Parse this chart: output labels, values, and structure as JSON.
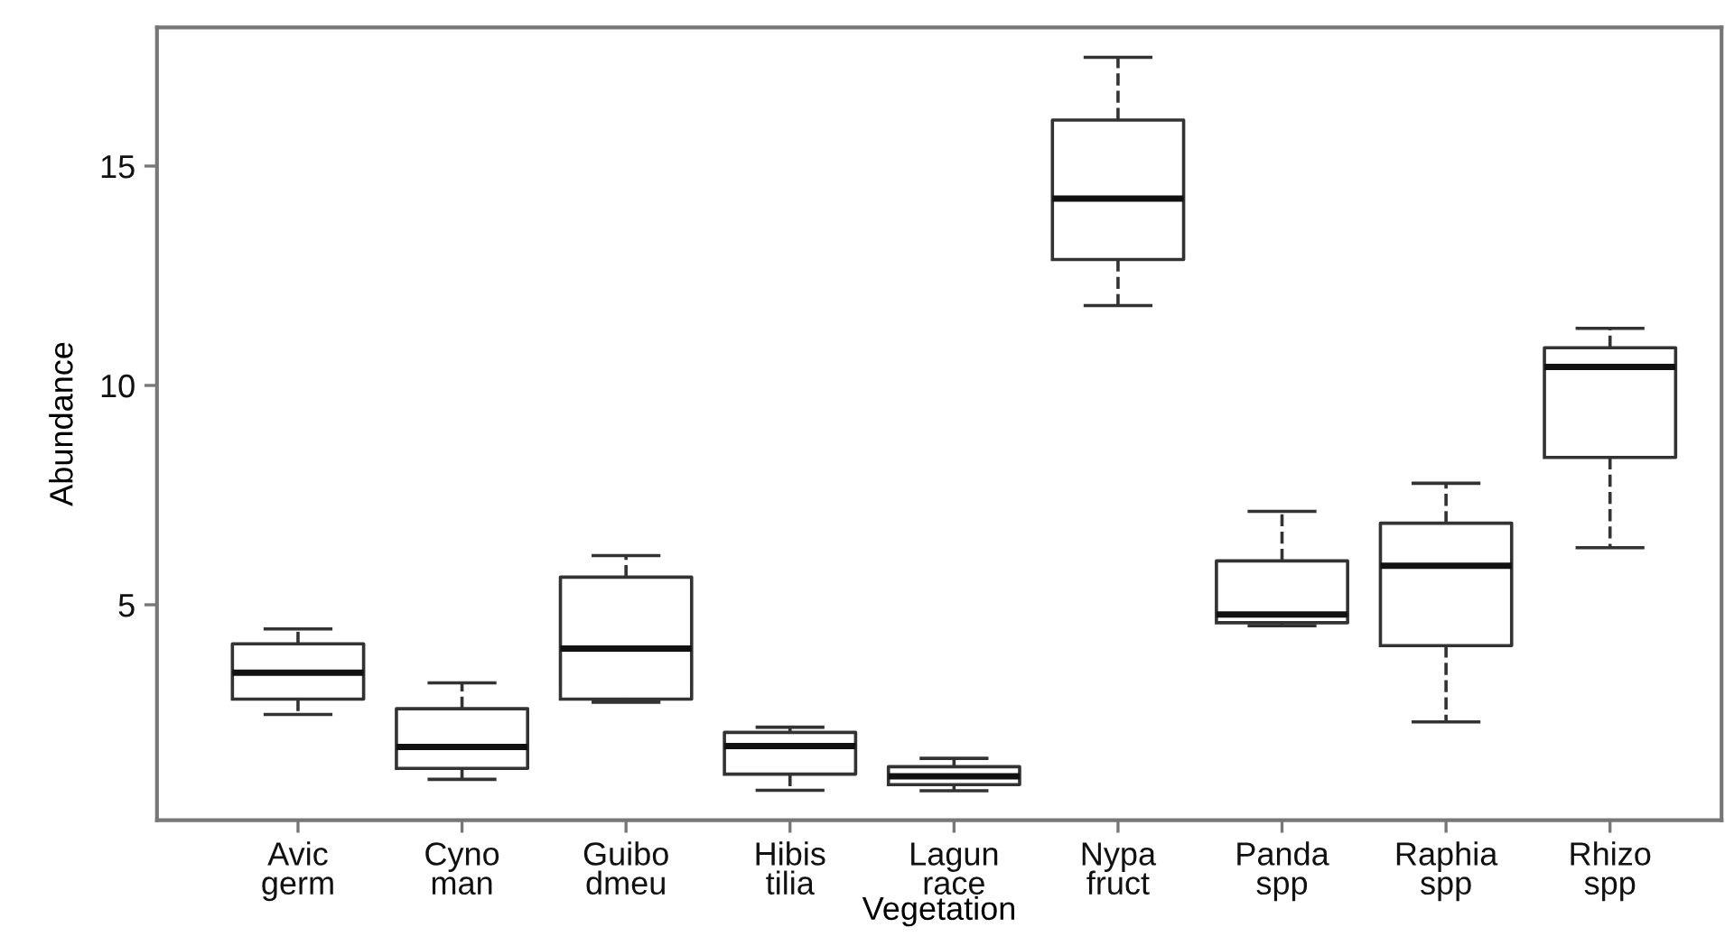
{
  "chart_data": {
    "type": "box",
    "xlabel": "Vegetation",
    "ylabel": "Abundance",
    "categories": [
      "Avic\ngerm",
      "Cyno\nman",
      "Guibo\ndmeu",
      "Hibis\ntilia",
      "Lagun\nrace",
      "Nypa\nfruct",
      "Panda\nspp",
      "Raphia\nspp",
      "Rhizo\nspp"
    ],
    "boxes": [
      {
        "low": 2.5,
        "q1": 2.85,
        "median": 3.45,
        "q3": 4.11,
        "high": 4.45
      },
      {
        "low": 1.02,
        "q1": 1.27,
        "median": 1.76,
        "q3": 2.63,
        "high": 3.22
      },
      {
        "low": 2.78,
        "q1": 2.85,
        "median": 4.0,
        "q3": 5.63,
        "high": 6.12
      },
      {
        "low": 0.77,
        "q1": 1.14,
        "median": 1.78,
        "q3": 2.09,
        "high": 2.21
      },
      {
        "low": 0.76,
        "q1": 0.9,
        "median": 1.09,
        "q3": 1.31,
        "high": 1.5
      },
      {
        "low": 11.82,
        "q1": 12.87,
        "median": 14.26,
        "q3": 16.05,
        "high": 17.48
      },
      {
        "low": 4.52,
        "q1": 4.59,
        "median": 4.78,
        "q3": 6.0,
        "high": 7.13
      },
      {
        "low": 2.33,
        "q1": 4.07,
        "median": 5.89,
        "q3": 6.86,
        "high": 7.77
      },
      {
        "low": 6.3,
        "q1": 8.36,
        "median": 10.42,
        "q3": 10.86,
        "high": 11.3
      }
    ],
    "color": "#333333",
    "ylim": [
      0.09,
      18.16
    ],
    "yticks": [
      5,
      10,
      15
    ],
    "grid": false,
    "line_style": "dashed"
  }
}
